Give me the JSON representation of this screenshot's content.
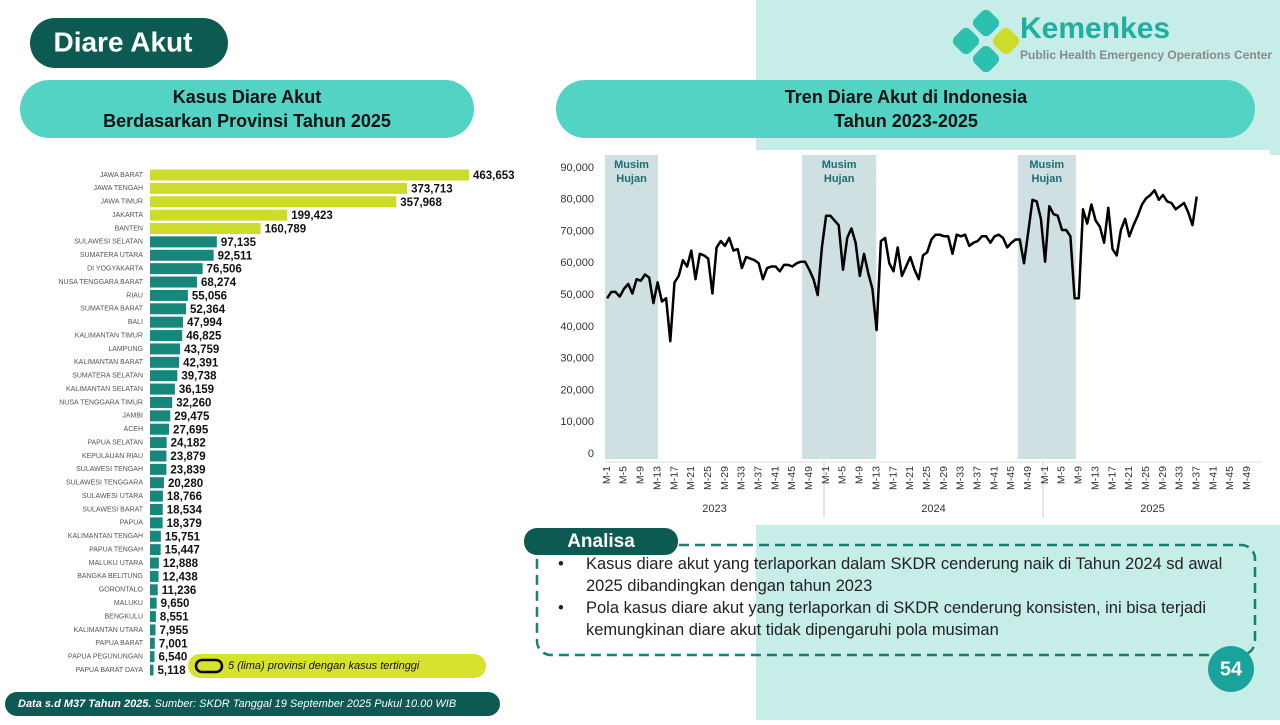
{
  "header": {
    "title": "Diare Akut",
    "logo_name": "Kemenkes",
    "logo_subtitle": "Public Health Emergency Operations Center"
  },
  "chart_data": [
    {
      "type": "hbar",
      "title": [
        "Kasus Diare Akut",
        "Berdasarkan Provinsi Tahun 2025"
      ],
      "categories": [
        "JAWA BARAT",
        "JAWA TENGAH",
        "JAWA TIMUR",
        "JAKARTA",
        "BANTEN",
        "SULAWESI SELATAN",
        "SUMATERA UTARA",
        "DI YOGYAKARTA",
        "NUSA TENGGARA BARAT",
        "RIAU",
        "SUMATERA BARAT",
        "BALI",
        "KALIMANTAN TIMUR",
        "LAMPUNG",
        "KALIMANTAN BARAT",
        "SUMATERA SELATAN",
        "KALIMANTAN SELATAN",
        "NUSA TENGGARA TIMUR",
        "JAMBI",
        "ACEH",
        "PAPUA SELATAN",
        "KEPULAUAN RIAU",
        "SULAWESI TENGAH",
        "SULAWESI TENGGARA",
        "SULAWESI UTARA",
        "SULAWESI BARAT",
        "PAPUA",
        "KALIMANTAN TENGAH",
        "PAPUA TENGAH",
        "MALUKU UTARA",
        "BANGKA BELITUNG",
        "GORONTALO",
        "MALUKU",
        "BENGKULU",
        "KALIMANTAN UTARA",
        "PAPUA BARAT",
        "PAPUA PEGUNUNGAN",
        "PAPUA BARAT DAYA"
      ],
      "values": [
        463653,
        373713,
        357968,
        199423,
        160789,
        97135,
        92511,
        76506,
        68274,
        55056,
        52364,
        47994,
        46825,
        43759,
        42391,
        39738,
        36159,
        32260,
        29475,
        27695,
        24182,
        23879,
        23839,
        20280,
        18766,
        18534,
        18379,
        15751,
        15447,
        12888,
        12438,
        11236,
        9650,
        8551,
        7955,
        7001,
        6540,
        5118
      ],
      "value_labels": [
        "463,653",
        "373,713",
        "357,968",
        "199,423",
        "160,789",
        "97,135",
        "92,511",
        "76,506",
        "68,274",
        "55,056",
        "52,364",
        "47,994",
        "46,825",
        "43,759",
        "42,391",
        "39,738",
        "36,159",
        "32,260",
        "29,475",
        "27,695",
        "24,182",
        "23,879",
        "23,839",
        "20,280",
        "18,766",
        "18,534",
        "18,379",
        "15,751",
        "15,447",
        "12,888",
        "12,438",
        "11,236",
        "9,650",
        "8,551",
        "7,955",
        "7,001",
        "6,540",
        "5,118"
      ],
      "colors": [
        "#cddc2a",
        "#cddc2a",
        "#cddc2a",
        "#cddc2a",
        "#cddc2a",
        "#17877c",
        "#17877c",
        "#17877c",
        "#17877c",
        "#17877c",
        "#17877c",
        "#17877c",
        "#17877c",
        "#17877c",
        "#17877c",
        "#17877c",
        "#17877c",
        "#17877c",
        "#17877c",
        "#17877c",
        "#17877c",
        "#17877c",
        "#17877c",
        "#17877c",
        "#17877c",
        "#17877c",
        "#17877c",
        "#17877c",
        "#17877c",
        "#17877c",
        "#17877c",
        "#17877c",
        "#17877c",
        "#17877c",
        "#17877c",
        "#17877c",
        "#17877c",
        "#17877c"
      ],
      "annotation": "5 (lima) provinsi dengan kasus tertinggi"
    },
    {
      "type": "line",
      "title": [
        "Tren Diare Akut di Indonesia",
        "Tahun 2023-2025"
      ],
      "x_groups": [
        "2023",
        "2024",
        "2025"
      ],
      "categories": [
        "M-1",
        null,
        null,
        null,
        "M-5",
        null,
        null,
        null,
        "M-9",
        null,
        null,
        null,
        "M-13",
        null,
        null,
        null,
        "M-17",
        null,
        null,
        null,
        "M-21",
        null,
        null,
        null,
        "M-25",
        null,
        null,
        null,
        "M-29",
        null,
        null,
        null,
        "M-33",
        null,
        null,
        null,
        "M-37",
        null,
        null,
        null,
        "M-41",
        null,
        null,
        null,
        "M-45",
        null,
        null,
        null,
        "M-49",
        null,
        null,
        null,
        "M-1",
        null,
        null,
        null,
        "M-5",
        null,
        null,
        null,
        "M-9",
        null,
        null,
        null,
        "M-13",
        null,
        null,
        null,
        "M-17",
        null,
        null,
        null,
        "M-21",
        null,
        null,
        null,
        "M-25",
        null,
        null,
        null,
        "M-29",
        null,
        null,
        null,
        "M-33",
        null,
        null,
        null,
        "M-37",
        null,
        null,
        null,
        "M-41",
        null,
        null,
        null,
        "M-45",
        null,
        null,
        null,
        "M-49",
        null,
        null,
        null,
        "M-1",
        null,
        null,
        null,
        "M-5",
        null,
        null,
        null,
        "M-9",
        null,
        null,
        null,
        "M-13",
        null,
        null,
        null,
        "M-17",
        null,
        null,
        null,
        "M-21",
        null,
        null,
        null,
        "M-25",
        null,
        null,
        null,
        "M-29",
        null,
        null,
        null,
        "M-33",
        null,
        null,
        null,
        "M-37",
        null,
        null,
        null,
        "M-41",
        null,
        null,
        null,
        "M-45",
        null,
        null,
        null,
        "M-49",
        null,
        null,
        null
      ],
      "values": [
        49000,
        51000,
        51000,
        49500,
        52000,
        53500,
        50500,
        55000,
        54500,
        56500,
        55500,
        47500,
        54000,
        48000,
        49000,
        35500,
        54000,
        56000,
        61000,
        59000,
        64000,
        55000,
        63000,
        62500,
        61500,
        50500,
        65000,
        67000,
        65500,
        68000,
        64000,
        64500,
        58500,
        62000,
        61500,
        61000,
        60000,
        55000,
        58500,
        59000,
        59000,
        57500,
        59500,
        59500,
        59000,
        60000,
        60500,
        60500,
        58000,
        55000,
        50000,
        65000,
        75000,
        75000,
        73500,
        72000,
        58000,
        68000,
        71000,
        66500,
        56000,
        63000,
        57000,
        52000,
        39000,
        67000,
        68000,
        60000,
        57500,
        65000,
        56000,
        59000,
        62000,
        58000,
        55000,
        62500,
        63500,
        67500,
        69000,
        69000,
        68500,
        68500,
        63000,
        69000,
        68500,
        69000,
        65500,
        66500,
        67000,
        68500,
        68500,
        66500,
        68500,
        69000,
        68000,
        65000,
        66500,
        67500,
        67500,
        60000,
        70000,
        80000,
        79500,
        74000,
        60500,
        78000,
        75500,
        75000,
        70500,
        70500,
        68500,
        49000,
        49000,
        77000,
        72500,
        78500,
        73500,
        71500,
        66500,
        77500,
        64500,
        62500,
        70500,
        74000,
        68500,
        72000,
        75000,
        78500,
        80500,
        81500,
        83000,
        80000,
        81500,
        79500,
        79000,
        77000,
        78000,
        79000,
        76000,
        72000,
        81000,
        null,
        null,
        null,
        null,
        null,
        null,
        null,
        null,
        null,
        null,
        null,
        null,
        null,
        null,
        null
      ],
      "color": "#000000",
      "ylim": [
        0,
        90000
      ],
      "yticks": [
        0,
        {
          "value": 10000,
          "label": "10,000"
        },
        {
          "value": 20000,
          "label": "20,000"
        },
        {
          "value": 30000,
          "label": "30,000"
        },
        {
          "value": 40000,
          "label": "40,000"
        },
        {
          "value": 50000,
          "label": "50,000"
        },
        {
          "value": 60000,
          "label": "60,000"
        },
        {
          "value": 70000,
          "label": "70,000"
        },
        {
          "value": 80000,
          "label": "80,000"
        },
        {
          "value": 90000,
          "label": "90,000"
        }
      ],
      "annotations": [
        [
          "Musim",
          "Hujan"
        ],
        [
          "Musim",
          "Hujan"
        ],
        [
          "Musim",
          "Hujan"
        ]
      ]
    }
  ],
  "analysis": {
    "title": "Analisa",
    "points": [
      "Kasus diare akut yang terlaporkan dalam SKDR cenderung naik di Tahun 2024 sd awal 2025 dibandingkan dengan tahun 2023",
      "Pola kasus diare akut yang terlaporkan di SKDR cenderung konsisten, ini bisa terjadi kemungkinan diare akut tidak dipengaruhi pola musiman"
    ]
  },
  "footer": {
    "data_note": "Data s.d M37 Tahun 2025.",
    "source": "Sumber: SKDR Tanggal 19 September 2025 Pukul 10.00 WIB"
  },
  "page_number": "54"
}
